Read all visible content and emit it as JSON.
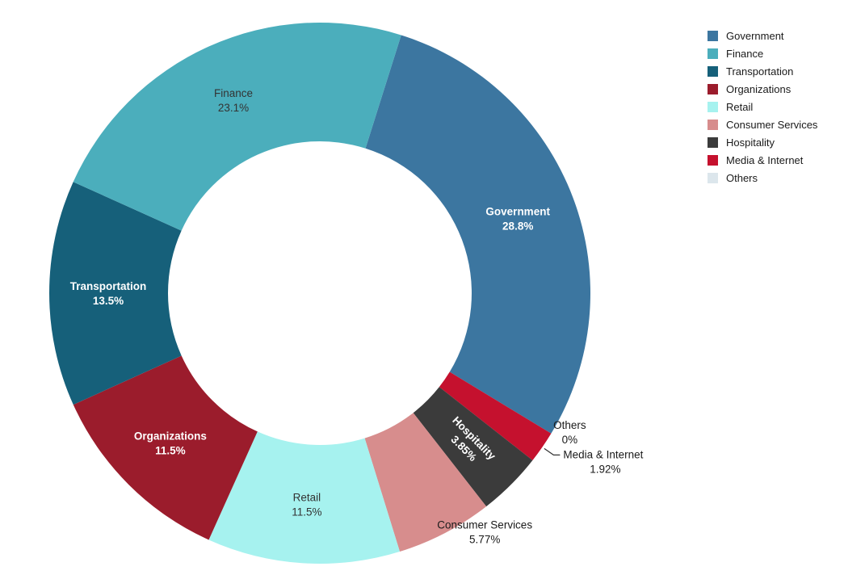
{
  "chart_data": {
    "type": "pie",
    "subtype": "donut",
    "title": "",
    "hole_ratio": 0.56,
    "rotation_deg": 17.5,
    "direction": "clockwise",
    "grid": false,
    "legend_position": "top-right",
    "slices": [
      {
        "name": "Government",
        "value": 28.8,
        "pct_label": "28.8%",
        "color": "#3c76a0",
        "label": "inside",
        "label_color": "#ffffff"
      },
      {
        "name": "Others",
        "value": 0,
        "pct_label": "0%",
        "color": "#dce6ec",
        "label": "outside"
      },
      {
        "name": "Media & Internet",
        "value": 1.92,
        "pct_label": "1.92%",
        "color": "#c5112e",
        "label": "outside",
        "leader": true
      },
      {
        "name": "Hospitality",
        "value": 3.85,
        "pct_label": "3.85%",
        "color": "#3b3b3b",
        "label": "inside",
        "label_color": "#ffffff",
        "rotate": true
      },
      {
        "name": "Consumer Services",
        "value": 5.77,
        "pct_label": "5.77%",
        "color": "#d78d8d",
        "label": "outside"
      },
      {
        "name": "Retail",
        "value": 11.5,
        "pct_label": "11.5%",
        "color": "#a6f2ef",
        "label": "inside",
        "label_color": "#333333"
      },
      {
        "name": "Organizations",
        "value": 11.5,
        "pct_label": "11.5%",
        "color": "#9b1c2c",
        "label": "inside",
        "label_color": "#ffffff"
      },
      {
        "name": "Transportation",
        "value": 13.5,
        "pct_label": "13.5%",
        "color": "#16607a",
        "label": "inside",
        "label_color": "#ffffff"
      },
      {
        "name": "Finance",
        "value": 23.1,
        "pct_label": "23.1%",
        "color": "#4baebc",
        "label": "inside",
        "label_color": "#333333"
      }
    ],
    "legend_order": [
      "Government",
      "Finance",
      "Transportation",
      "Organizations",
      "Retail",
      "Consumer Services",
      "Hospitality",
      "Media & Internet",
      "Others"
    ]
  }
}
